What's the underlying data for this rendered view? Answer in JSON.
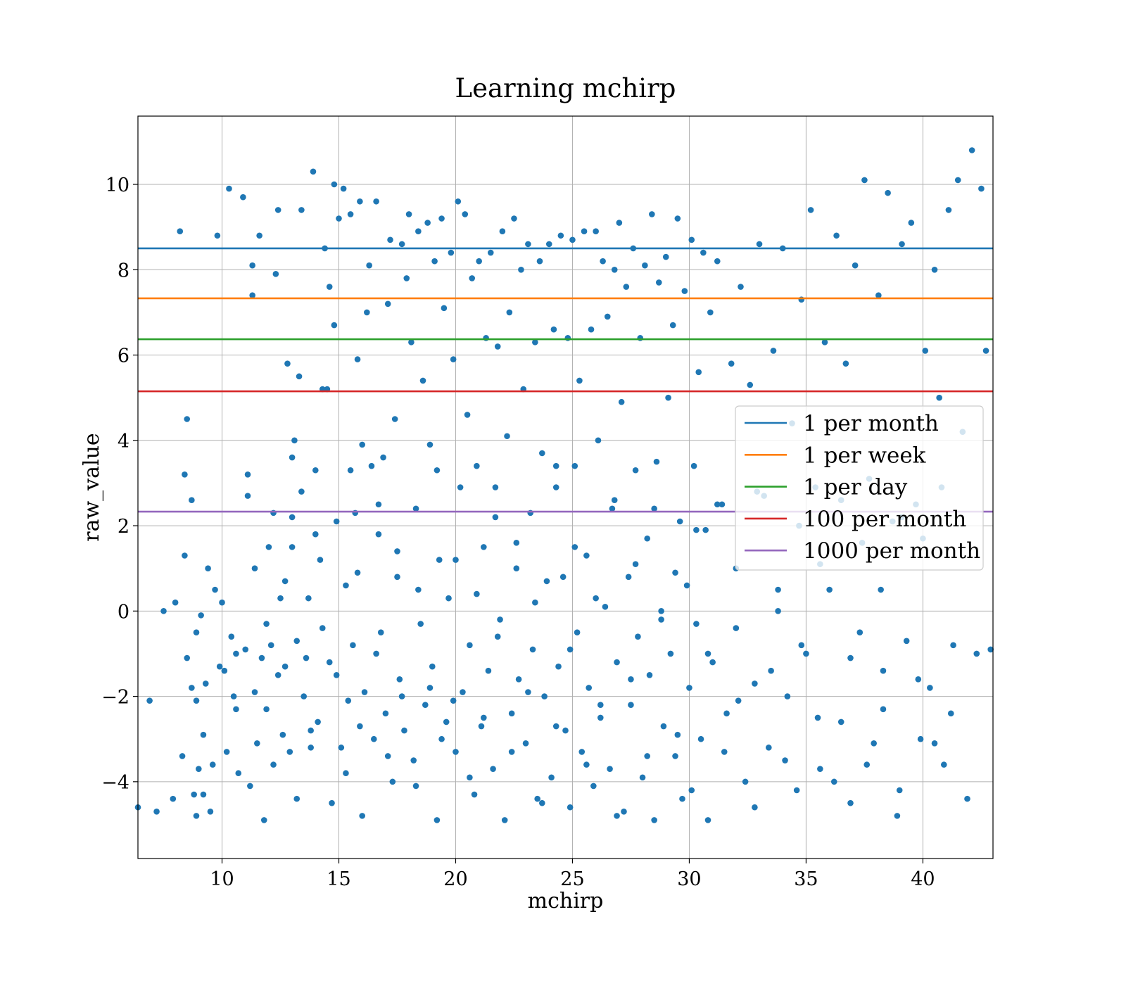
{
  "chart_data": {
    "type": "scatter",
    "title": "Learning mchirp",
    "xlabel": "mchirp",
    "ylabel": "raw_value",
    "xlim": [
      6.4,
      43.0
    ],
    "ylim": [
      -5.8,
      11.6
    ],
    "xticks": [
      10,
      15,
      20,
      25,
      30,
      35,
      40
    ],
    "yticks": [
      -4,
      -2,
      0,
      2,
      4,
      6,
      8,
      10
    ],
    "xtick_labels": [
      "10",
      "15",
      "20",
      "25",
      "30",
      "35",
      "40"
    ],
    "ytick_labels": [
      "−4",
      "−2",
      "0",
      "2",
      "4",
      "6",
      "8",
      "10"
    ],
    "grid": true,
    "legend_position": "center-right",
    "point_color": "#1f77b4",
    "scatter_points": [
      [
        6.4,
        -4.6
      ],
      [
        6.9,
        -2.1
      ],
      [
        7.2,
        -4.7
      ],
      [
        7.5,
        0.0
      ],
      [
        7.9,
        -4.4
      ],
      [
        8.0,
        0.2
      ],
      [
        8.2,
        8.9
      ],
      [
        8.3,
        -3.4
      ],
      [
        8.4,
        1.3
      ],
      [
        8.4,
        3.2
      ],
      [
        8.5,
        -1.1
      ],
      [
        8.5,
        4.5
      ],
      [
        8.7,
        2.6
      ],
      [
        8.7,
        -1.8
      ],
      [
        8.8,
        -4.3
      ],
      [
        8.9,
        -0.5
      ],
      [
        8.9,
        -2.1
      ],
      [
        8.9,
        -4.8
      ],
      [
        9.0,
        -3.7
      ],
      [
        9.1,
        -0.1
      ],
      [
        9.2,
        -2.9
      ],
      [
        9.3,
        -1.7
      ],
      [
        9.4,
        1.0
      ],
      [
        9.5,
        -4.7
      ],
      [
        9.6,
        -3.6
      ],
      [
        9.7,
        0.5
      ],
      [
        9.8,
        8.8
      ],
      [
        9.9,
        -1.3
      ],
      [
        10.0,
        0.2
      ],
      [
        10.1,
        -1.4
      ],
      [
        10.2,
        -3.3
      ],
      [
        10.3,
        9.9
      ],
      [
        10.4,
        -0.6
      ],
      [
        10.5,
        -2.0
      ],
      [
        10.6,
        -1.0
      ],
      [
        10.7,
        -3.8
      ],
      [
        10.9,
        9.7
      ],
      [
        11.0,
        -0.9
      ],
      [
        11.1,
        3.2
      ],
      [
        11.1,
        2.7
      ],
      [
        11.2,
        -4.1
      ],
      [
        11.3,
        8.1
      ],
      [
        11.3,
        7.4
      ],
      [
        11.4,
        -1.9
      ],
      [
        11.5,
        -3.1
      ],
      [
        11.6,
        8.8
      ],
      [
        11.7,
        -1.1
      ],
      [
        11.8,
        -4.9
      ],
      [
        11.9,
        -2.3
      ],
      [
        12.0,
        1.5
      ],
      [
        12.1,
        -0.8
      ],
      [
        12.2,
        -3.6
      ],
      [
        12.3,
        7.9
      ],
      [
        12.4,
        -1.5
      ],
      [
        12.4,
        9.4
      ],
      [
        12.5,
        0.3
      ],
      [
        12.6,
        -2.9
      ],
      [
        12.7,
        0.7
      ],
      [
        12.8,
        5.8
      ],
      [
        12.9,
        -3.3
      ],
      [
        13.0,
        1.5
      ],
      [
        13.0,
        2.2
      ],
      [
        13.1,
        4.0
      ],
      [
        13.2,
        -4.4
      ],
      [
        13.2,
        -0.7
      ],
      [
        13.3,
        5.5
      ],
      [
        13.4,
        2.8
      ],
      [
        13.4,
        9.4
      ],
      [
        13.5,
        -2.0
      ],
      [
        13.6,
        -1.1
      ],
      [
        13.7,
        0.3
      ],
      [
        13.8,
        -3.2
      ],
      [
        13.9,
        10.3
      ],
      [
        14.0,
        3.3
      ],
      [
        14.1,
        -2.6
      ],
      [
        14.2,
        1.2
      ],
      [
        14.3,
        -0.4
      ],
      [
        14.3,
        5.2
      ],
      [
        14.4,
        8.5
      ],
      [
        14.5,
        5.2
      ],
      [
        14.6,
        7.6
      ],
      [
        14.7,
        -4.5
      ],
      [
        14.8,
        10.0
      ],
      [
        14.8,
        6.7
      ],
      [
        14.9,
        -1.5
      ],
      [
        15.0,
        9.2
      ],
      [
        15.1,
        -3.2
      ],
      [
        15.2,
        9.9
      ],
      [
        15.3,
        0.6
      ],
      [
        15.4,
        -2.1
      ],
      [
        15.5,
        3.3
      ],
      [
        15.5,
        9.3
      ],
      [
        15.6,
        -0.8
      ],
      [
        15.7,
        2.3
      ],
      [
        15.8,
        5.9
      ],
      [
        15.9,
        9.6
      ],
      [
        16.0,
        -4.8
      ],
      [
        16.0,
        3.9
      ],
      [
        16.1,
        -1.9
      ],
      [
        16.2,
        7.0
      ],
      [
        16.3,
        8.1
      ],
      [
        16.4,
        3.4
      ],
      [
        16.5,
        -3.0
      ],
      [
        16.6,
        9.6
      ],
      [
        16.7,
        1.8
      ],
      [
        16.8,
        -0.5
      ],
      [
        16.9,
        3.6
      ],
      [
        17.0,
        -2.4
      ],
      [
        17.1,
        7.2
      ],
      [
        17.2,
        8.7
      ],
      [
        17.3,
        -4.0
      ],
      [
        17.4,
        4.5
      ],
      [
        17.5,
        0.8
      ],
      [
        17.6,
        -1.6
      ],
      [
        17.7,
        8.6
      ],
      [
        17.8,
        -2.8
      ],
      [
        17.9,
        7.8
      ],
      [
        18.0,
        9.3
      ],
      [
        18.1,
        6.3
      ],
      [
        18.2,
        -3.5
      ],
      [
        18.3,
        2.4
      ],
      [
        18.4,
        8.9
      ],
      [
        18.5,
        -0.3
      ],
      [
        18.6,
        5.4
      ],
      [
        18.7,
        -2.2
      ],
      [
        18.8,
        9.1
      ],
      [
        18.9,
        3.9
      ],
      [
        19.0,
        -1.3
      ],
      [
        19.1,
        8.2
      ],
      [
        19.2,
        -4.9
      ],
      [
        19.3,
        1.2
      ],
      [
        19.4,
        9.2
      ],
      [
        19.5,
        7.1
      ],
      [
        19.6,
        -2.6
      ],
      [
        19.7,
        0.3
      ],
      [
        19.8,
        8.4
      ],
      [
        19.9,
        5.9
      ],
      [
        20.0,
        -3.3
      ],
      [
        20.1,
        9.6
      ],
      [
        20.2,
        2.9
      ],
      [
        20.3,
        -1.9
      ],
      [
        20.4,
        9.3
      ],
      [
        20.5,
        4.6
      ],
      [
        20.6,
        -0.8
      ],
      [
        20.7,
        7.8
      ],
      [
        20.8,
        -4.3
      ],
      [
        20.9,
        3.4
      ],
      [
        21.0,
        8.2
      ],
      [
        21.1,
        -2.7
      ],
      [
        21.2,
        1.5
      ],
      [
        21.3,
        6.4
      ],
      [
        21.4,
        -1.4
      ],
      [
        21.5,
        8.4
      ],
      [
        21.6,
        -3.7
      ],
      [
        21.7,
        2.2
      ],
      [
        21.8,
        6.2
      ],
      [
        21.9,
        -0.2
      ],
      [
        22.0,
        8.9
      ],
      [
        22.1,
        -4.9
      ],
      [
        22.2,
        4.1
      ],
      [
        22.3,
        7.0
      ],
      [
        22.4,
        -2.4
      ],
      [
        22.5,
        9.2
      ],
      [
        22.6,
        1.0
      ],
      [
        22.7,
        -1.6
      ],
      [
        22.8,
        8.0
      ],
      [
        22.9,
        5.2
      ],
      [
        23.0,
        -3.1
      ],
      [
        23.1,
        8.6
      ],
      [
        23.2,
        2.3
      ],
      [
        23.3,
        -0.9
      ],
      [
        23.4,
        6.3
      ],
      [
        23.5,
        -4.4
      ],
      [
        23.6,
        8.2
      ],
      [
        23.7,
        3.7
      ],
      [
        23.8,
        -2.0
      ],
      [
        23.9,
        0.7
      ],
      [
        24.0,
        8.6
      ],
      [
        24.1,
        -3.9
      ],
      [
        24.2,
        6.6
      ],
      [
        24.3,
        2.9
      ],
      [
        24.4,
        -1.3
      ],
      [
        24.5,
        8.8
      ],
      [
        24.6,
        0.8
      ],
      [
        24.7,
        -2.8
      ],
      [
        24.8,
        6.4
      ],
      [
        24.9,
        -4.6
      ],
      [
        25.0,
        8.7
      ],
      [
        25.1,
        3.4
      ],
      [
        25.2,
        -0.5
      ],
      [
        25.3,
        5.4
      ],
      [
        25.4,
        -3.3
      ],
      [
        25.5,
        8.9
      ],
      [
        25.6,
        1.3
      ],
      [
        25.7,
        -1.8
      ],
      [
        25.8,
        6.6
      ],
      [
        25.9,
        -4.1
      ],
      [
        26.0,
        8.9
      ],
      [
        26.1,
        4.0
      ],
      [
        26.2,
        -2.5
      ],
      [
        26.3,
        8.2
      ],
      [
        26.4,
        0.1
      ],
      [
        26.5,
        6.9
      ],
      [
        26.6,
        -3.7
      ],
      [
        26.7,
        2.4
      ],
      [
        26.8,
        8.0
      ],
      [
        26.9,
        -1.2
      ],
      [
        27.0,
        9.1
      ],
      [
        27.1,
        4.9
      ],
      [
        27.2,
        -4.7
      ],
      [
        27.3,
        7.6
      ],
      [
        27.4,
        0.8
      ],
      [
        27.5,
        -2.2
      ],
      [
        27.6,
        8.5
      ],
      [
        27.7,
        3.3
      ],
      [
        27.8,
        -0.6
      ],
      [
        27.9,
        6.4
      ],
      [
        28.0,
        -3.9
      ],
      [
        28.1,
        8.1
      ],
      [
        28.2,
        1.7
      ],
      [
        28.3,
        -1.5
      ],
      [
        28.4,
        9.3
      ],
      [
        28.5,
        -4.9
      ],
      [
        28.6,
        3.5
      ],
      [
        28.7,
        7.7
      ],
      [
        28.8,
        0.0
      ],
      [
        28.9,
        -2.7
      ],
      [
        29.0,
        8.3
      ],
      [
        29.1,
        5.0
      ],
      [
        29.2,
        -1.0
      ],
      [
        29.3,
        6.7
      ],
      [
        29.4,
        -3.4
      ],
      [
        29.5,
        9.2
      ],
      [
        29.6,
        2.1
      ],
      [
        29.7,
        -4.4
      ],
      [
        29.8,
        7.5
      ],
      [
        29.9,
        0.6
      ],
      [
        30.0,
        -1.8
      ],
      [
        30.1,
        8.7
      ],
      [
        30.2,
        3.4
      ],
      [
        30.3,
        -0.3
      ],
      [
        30.4,
        5.6
      ],
      [
        30.5,
        -3.0
      ],
      [
        30.6,
        8.4
      ],
      [
        30.7,
        1.9
      ],
      [
        30.8,
        -4.9
      ],
      [
        30.9,
        7.0
      ],
      [
        31.0,
        -1.2
      ],
      [
        31.2,
        8.2
      ],
      [
        31.4,
        2.5
      ],
      [
        31.6,
        -2.4
      ],
      [
        31.8,
        5.8
      ],
      [
        32.0,
        -0.4
      ],
      [
        32.2,
        7.6
      ],
      [
        32.4,
        -4.0
      ],
      [
        32.6,
        5.3
      ],
      [
        32.8,
        -1.7
      ],
      [
        33.0,
        8.6
      ],
      [
        33.2,
        2.7
      ],
      [
        33.4,
        -3.2
      ],
      [
        33.6,
        6.1
      ],
      [
        33.8,
        0.0
      ],
      [
        34.0,
        8.5
      ],
      [
        34.2,
        -2.0
      ],
      [
        34.4,
        4.4
      ],
      [
        34.6,
        -4.2
      ],
      [
        34.8,
        7.3
      ],
      [
        35.0,
        -1.0
      ],
      [
        35.2,
        9.4
      ],
      [
        35.4,
        2.9
      ],
      [
        35.6,
        -3.7
      ],
      [
        35.8,
        6.3
      ],
      [
        36.0,
        0.5
      ],
      [
        36.3,
        8.8
      ],
      [
        36.5,
        -2.6
      ],
      [
        36.7,
        5.8
      ],
      [
        36.9,
        -4.5
      ],
      [
        37.1,
        8.1
      ],
      [
        37.3,
        -0.5
      ],
      [
        37.5,
        10.1
      ],
      [
        37.7,
        3.1
      ],
      [
        37.9,
        -3.1
      ],
      [
        38.1,
        7.4
      ],
      [
        38.3,
        -1.4
      ],
      [
        38.5,
        9.8
      ],
      [
        38.7,
        2.1
      ],
      [
        38.9,
        -4.8
      ],
      [
        39.1,
        8.6
      ],
      [
        39.3,
        -0.7
      ],
      [
        39.5,
        9.1
      ],
      [
        39.7,
        2.5
      ],
      [
        39.9,
        -3.0
      ],
      [
        40.1,
        6.1
      ],
      [
        40.3,
        -1.8
      ],
      [
        40.5,
        8.0
      ],
      [
        40.7,
        5.0
      ],
      [
        40.9,
        -3.6
      ],
      [
        41.1,
        9.4
      ],
      [
        41.3,
        -0.8
      ],
      [
        41.5,
        10.1
      ],
      [
        41.7,
        4.2
      ],
      [
        41.9,
        -4.4
      ],
      [
        42.1,
        10.8
      ],
      [
        42.3,
        -1.0
      ],
      [
        42.5,
        9.9
      ],
      [
        42.7,
        6.1
      ],
      [
        42.9,
        -0.9
      ],
      [
        9.2,
        -4.3
      ],
      [
        10.6,
        -2.3
      ],
      [
        11.9,
        -0.3
      ],
      [
        12.7,
        -1.3
      ],
      [
        13.8,
        -2.8
      ],
      [
        14.6,
        -1.2
      ],
      [
        15.3,
        -3.8
      ],
      [
        15.9,
        -2.7
      ],
      [
        16.6,
        -1.0
      ],
      [
        17.1,
        -3.4
      ],
      [
        17.7,
        -2.0
      ],
      [
        18.3,
        -4.1
      ],
      [
        18.9,
        -1.8
      ],
      [
        19.4,
        -3.0
      ],
      [
        19.9,
        -2.1
      ],
      [
        20.6,
        -3.9
      ],
      [
        21.2,
        -2.5
      ],
      [
        21.8,
        -0.6
      ],
      [
        22.4,
        -3.3
      ],
      [
        23.1,
        -1.9
      ],
      [
        23.7,
        -4.5
      ],
      [
        24.3,
        -2.7
      ],
      [
        24.9,
        -0.9
      ],
      [
        25.6,
        -3.6
      ],
      [
        26.2,
        -2.2
      ],
      [
        26.9,
        -4.8
      ],
      [
        27.5,
        -1.6
      ],
      [
        28.2,
        -3.4
      ],
      [
        28.8,
        -0.2
      ],
      [
        29.5,
        -2.9
      ],
      [
        30.1,
        -4.2
      ],
      [
        30.8,
        -1.0
      ],
      [
        31.5,
        -3.3
      ],
      [
        32.1,
        -2.1
      ],
      [
        32.8,
        -4.6
      ],
      [
        33.5,
        -1.4
      ],
      [
        34.1,
        -3.5
      ],
      [
        34.8,
        -0.8
      ],
      [
        35.5,
        -2.5
      ],
      [
        36.2,
        -4.0
      ],
      [
        36.9,
        -1.1
      ],
      [
        37.6,
        -3.6
      ],
      [
        38.3,
        -2.3
      ],
      [
        39.0,
        -4.2
      ],
      [
        39.8,
        -1.6
      ],
      [
        40.5,
        -3.1
      ],
      [
        41.2,
        -2.4
      ],
      [
        11.4,
        1.0
      ],
      [
        12.2,
        2.3
      ],
      [
        13.0,
        3.6
      ],
      [
        14.0,
        1.8
      ],
      [
        14.9,
        2.1
      ],
      [
        15.8,
        0.9
      ],
      [
        16.7,
        2.5
      ],
      [
        17.5,
        1.4
      ],
      [
        18.4,
        0.5
      ],
      [
        19.2,
        3.3
      ],
      [
        20.0,
        1.2
      ],
      [
        20.9,
        0.4
      ],
      [
        21.7,
        2.9
      ],
      [
        22.6,
        1.6
      ],
      [
        23.4,
        0.2
      ],
      [
        24.3,
        3.4
      ],
      [
        25.1,
        1.5
      ],
      [
        26.0,
        0.3
      ],
      [
        26.8,
        2.6
      ],
      [
        27.7,
        1.1
      ],
      [
        28.5,
        2.4
      ],
      [
        29.4,
        0.9
      ],
      [
        30.3,
        1.9
      ],
      [
        31.2,
        2.5
      ],
      [
        32.0,
        1.0
      ],
      [
        32.9,
        2.8
      ],
      [
        33.8,
        0.5
      ],
      [
        34.7,
        2.0
      ],
      [
        35.6,
        1.1
      ],
      [
        36.5,
        2.6
      ],
      [
        37.4,
        1.6
      ],
      [
        38.2,
        0.5
      ],
      [
        39.1,
        2.2
      ],
      [
        40.0,
        1.7
      ],
      [
        40.8,
        2.9
      ]
    ],
    "series": [
      {
        "name": "1 per month",
        "type": "hline",
        "value": 8.5,
        "color": "#1f77b4"
      },
      {
        "name": "1 per week",
        "type": "hline",
        "value": 7.33,
        "color": "#ff7f0e"
      },
      {
        "name": "1 per day",
        "type": "hline",
        "value": 6.37,
        "color": "#2ca02c"
      },
      {
        "name": "100 per month",
        "type": "hline",
        "value": 5.15,
        "color": "#d62728"
      },
      {
        "name": "1000 per month",
        "type": "hline",
        "value": 2.33,
        "color": "#9467bd"
      }
    ]
  }
}
